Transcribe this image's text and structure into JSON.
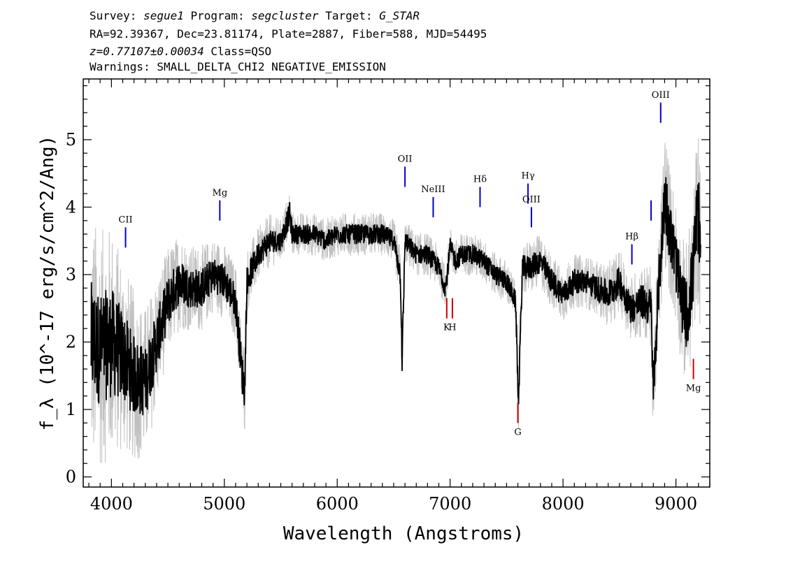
{
  "header": {
    "survey_label": "Survey:",
    "survey": "segue1",
    "program_label": "Program:",
    "program": "segcluster",
    "target_label": "Target:",
    "target": "G_STAR",
    "line2": "RA=92.39367, Dec=23.81174, Plate=2887, Fiber=588, MJD=54495",
    "redshift": "z=0.77107±0.00034",
    "class": "Class=QSO",
    "warnings": "Warnings: SMALL_DELTA_CHI2 NEGATIVE_EMISSION"
  },
  "chart_data": {
    "type": "line",
    "title": "",
    "xlabel": "Wavelength (Angstroms)",
    "ylabel": "f_λ (10^-17 erg/s/cm^2/Ang)",
    "xlim": [
      3750,
      9300
    ],
    "ylim": [
      -0.15,
      5.9
    ],
    "x_ticks": [
      4000,
      5000,
      6000,
      7000,
      8000,
      9000
    ],
    "y_ticks": [
      0,
      1,
      2,
      3,
      4,
      5
    ],
    "grid": false,
    "legend": "none",
    "colors": {
      "flux": "#000000",
      "error": "#c0c0c0",
      "emission": "#0000cc",
      "absorption": "#cc0000"
    },
    "series": [
      {
        "role": "flux",
        "x": [
          3820,
          3900,
          4000,
          4100,
          4200,
          4300,
          4400,
          4500,
          4600,
          4700,
          4800,
          4900,
          5000,
          5100,
          5160,
          5180,
          5200,
          5300,
          5400,
          5500,
          5580,
          5600,
          5700,
          5800,
          5900,
          6000,
          6100,
          6200,
          6300,
          6400,
          6500,
          6560,
          6575,
          6600,
          6700,
          6800,
          6900,
          6960,
          7000,
          7050,
          7100,
          7200,
          7300,
          7400,
          7500,
          7580,
          7605,
          7640,
          7700,
          7800,
          7900,
          8000,
          8100,
          8200,
          8300,
          8400,
          8500,
          8600,
          8700,
          8780,
          8800,
          8850,
          8880,
          8900,
          8950,
          9000,
          9050,
          9100,
          9150,
          9180,
          9200,
          9220
        ],
        "y": [
          2.0,
          1.9,
          2.0,
          1.8,
          1.5,
          1.4,
          2.0,
          2.6,
          2.9,
          2.8,
          2.8,
          3.0,
          2.9,
          2.6,
          1.5,
          1.3,
          2.9,
          3.3,
          3.5,
          3.5,
          3.9,
          3.6,
          3.6,
          3.6,
          3.5,
          3.6,
          3.6,
          3.6,
          3.6,
          3.6,
          3.5,
          3.0,
          1.7,
          3.5,
          3.3,
          3.3,
          3.1,
          2.8,
          3.4,
          3.2,
          3.3,
          3.3,
          3.2,
          3.0,
          2.9,
          2.6,
          1.1,
          3.1,
          3.1,
          3.2,
          2.9,
          2.7,
          2.9,
          2.9,
          2.8,
          2.7,
          2.9,
          2.5,
          2.6,
          2.5,
          1.3,
          2.9,
          3.6,
          4.2,
          3.6,
          3.2,
          2.6,
          2.4,
          3.0,
          3.7,
          3.9,
          3.1
        ]
      },
      {
        "role": "error",
        "x": [
          3820,
          3900,
          4000,
          4100,
          4200,
          4300,
          4400,
          4500,
          4600,
          4700,
          4800,
          4900,
          5000,
          5100,
          5160,
          5180,
          5200,
          5300,
          5400,
          5500,
          5580,
          5600,
          5700,
          5800,
          5900,
          6000,
          6100,
          6200,
          6300,
          6400,
          6500,
          6560,
          6575,
          6600,
          6700,
          6800,
          6900,
          6960,
          7000,
          7050,
          7100,
          7200,
          7300,
          7400,
          7500,
          7580,
          7605,
          7640,
          7700,
          7800,
          7900,
          8000,
          8100,
          8200,
          8300,
          8400,
          8500,
          8600,
          8700,
          8780,
          8800,
          8850,
          8880,
          8900,
          8950,
          9000,
          9050,
          9100,
          9150,
          9180,
          9200,
          9220
        ],
        "y": [
          1.2,
          1.1,
          1.1,
          0.9,
          0.8,
          0.7,
          0.6,
          0.5,
          0.45,
          0.4,
          0.4,
          0.35,
          0.35,
          0.35,
          0.4,
          0.4,
          0.3,
          0.25,
          0.25,
          0.2,
          0.25,
          0.2,
          0.2,
          0.2,
          0.2,
          0.2,
          0.2,
          0.2,
          0.2,
          0.2,
          0.2,
          0.25,
          0.3,
          0.2,
          0.2,
          0.2,
          0.2,
          0.2,
          0.2,
          0.2,
          0.2,
          0.2,
          0.2,
          0.2,
          0.2,
          0.2,
          0.3,
          0.25,
          0.25,
          0.25,
          0.25,
          0.25,
          0.25,
          0.25,
          0.25,
          0.3,
          0.3,
          0.3,
          0.35,
          0.4,
          0.5,
          0.5,
          0.6,
          0.7,
          0.6,
          0.6,
          0.6,
          0.7,
          0.7,
          0.8,
          0.8,
          0.8
        ]
      }
    ],
    "emission_lines": [
      {
        "label": "CII",
        "x": 4125,
        "y1": 3.4,
        "y2": 3.7
      },
      {
        "label": "Mg",
        "x": 4960,
        "y1": 3.8,
        "y2": 4.1
      },
      {
        "label": "OII",
        "x": 6600,
        "y1": 4.3,
        "y2": 4.6
      },
      {
        "label": "NeIII",
        "x": 6850,
        "y1": 3.85,
        "y2": 4.15
      },
      {
        "label": "Hδ",
        "x": 7265,
        "y1": 4.0,
        "y2": 4.3
      },
      {
        "label": "Hγ",
        "x": 7690,
        "y1": 4.05,
        "y2": 4.35
      },
      {
        "label": "OIII",
        "x": 7720,
        "y1": 3.7,
        "y2": 4.0
      },
      {
        "label": "Hβ",
        "x": 8610,
        "y1": 3.15,
        "y2": 3.45
      },
      {
        "label": "",
        "x": 8780,
        "y1": 3.8,
        "y2": 4.1
      },
      {
        "label": "OIII",
        "x": 8865,
        "y1": 5.25,
        "y2": 5.55
      }
    ],
    "absorption_lines": [
      {
        "label": "K",
        "x": 6970,
        "y1": 2.35,
        "y2": 2.65
      },
      {
        "label": "H",
        "x": 7020,
        "y1": 2.35,
        "y2": 2.65
      },
      {
        "label": "G",
        "x": 7600,
        "y1": 0.8,
        "y2": 1.1
      },
      {
        "label": "Mg",
        "x": 9155,
        "y1": 1.45,
        "y2": 1.75
      }
    ]
  }
}
